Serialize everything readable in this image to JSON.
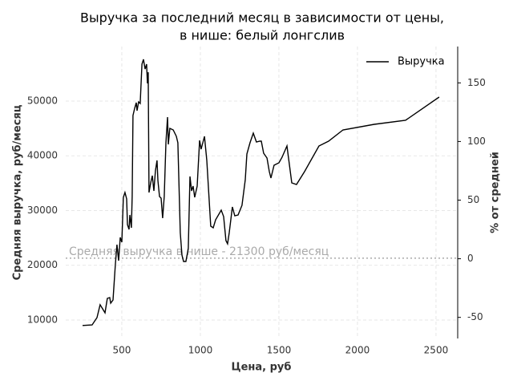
{
  "chart_data": {
    "type": "line",
    "title": [
      "Выручка за последний месяц в зависимости от цены,",
      "в нише: белый лонгслив"
    ],
    "x_label": "Цена, руб",
    "y_label": "Средняя выручка, руб/месяц",
    "y2_label": "% от средней",
    "annotation": "Средняя выручка в нише - 21300 руб/месяц",
    "mean": 21300,
    "mean_color": "#aaaaaa",
    "grid": true,
    "legend": "upper right",
    "xlim": [
      143,
      2638
    ],
    "ylim": [
      6630,
      59960
    ],
    "y2lim": [
      -68,
      181
    ],
    "xticks": [
      500,
      1000,
      1500,
      2000,
      2500
    ],
    "yticks": [
      10000,
      20000,
      30000,
      40000,
      50000
    ],
    "y2ticks": [
      -50,
      0,
      50,
      100,
      150
    ],
    "x": [
      250,
      311,
      342,
      362,
      393,
      408,
      423,
      429,
      444,
      459,
      469,
      480,
      490,
      500,
      510,
      520,
      531,
      536,
      546,
      551,
      561,
      566,
      571,
      582,
      592,
      597,
      607,
      617,
      628,
      638,
      648,
      658,
      663,
      668,
      673,
      684,
      694,
      704,
      714,
      724,
      730,
      740,
      750,
      760,
      770,
      781,
      791,
      796,
      806,
      827,
      847,
      857,
      872,
      883,
      893,
      908,
      923,
      934,
      944,
      954,
      964,
      980,
      995,
      1005,
      1026,
      1041,
      1066,
      1082,
      1097,
      1133,
      1148,
      1163,
      1173,
      1184,
      1204,
      1219,
      1240,
      1265,
      1286,
      1296,
      1316,
      1337,
      1357,
      1378,
      1388,
      1403,
      1424,
      1439,
      1449,
      1469,
      1500,
      1520,
      1551,
      1582,
      1612,
      1663,
      1755,
      1816,
      1908,
      2107,
      2306,
      2520
    ],
    "series": [
      {
        "name": "Выручка",
        "color": "#000000",
        "values": [
          9000,
          9100,
          10440,
          12800,
          11320,
          13960,
          14100,
          13080,
          13660,
          20110,
          23770,
          20840,
          25090,
          24210,
          32410,
          33290,
          32120,
          27430,
          26550,
          29190,
          26850,
          32560,
          47360,
          48680,
          49700,
          48240,
          49850,
          49560,
          56730,
          57610,
          55850,
          56730,
          53220,
          55270,
          33290,
          35050,
          36370,
          33590,
          37250,
          39150,
          35490,
          32560,
          32270,
          28610,
          32560,
          42380,
          47060,
          42080,
          45010,
          44720,
          43550,
          42380,
          25970,
          21870,
          20690,
          20690,
          23040,
          36220,
          33590,
          34470,
          32410,
          34470,
          42820,
          41200,
          43550,
          39150,
          27140,
          26850,
          28310,
          30070,
          28900,
          24500,
          23920,
          25970,
          30660,
          29050,
          29190,
          30950,
          35640,
          40330,
          42380,
          44130,
          42520,
          42670,
          42670,
          40470,
          39590,
          37100,
          35930,
          38270,
          38710,
          39740,
          41790,
          35050,
          34760,
          37100,
          41790,
          42670,
          44720,
          45750,
          46480,
          50730
        ]
      }
    ]
  }
}
